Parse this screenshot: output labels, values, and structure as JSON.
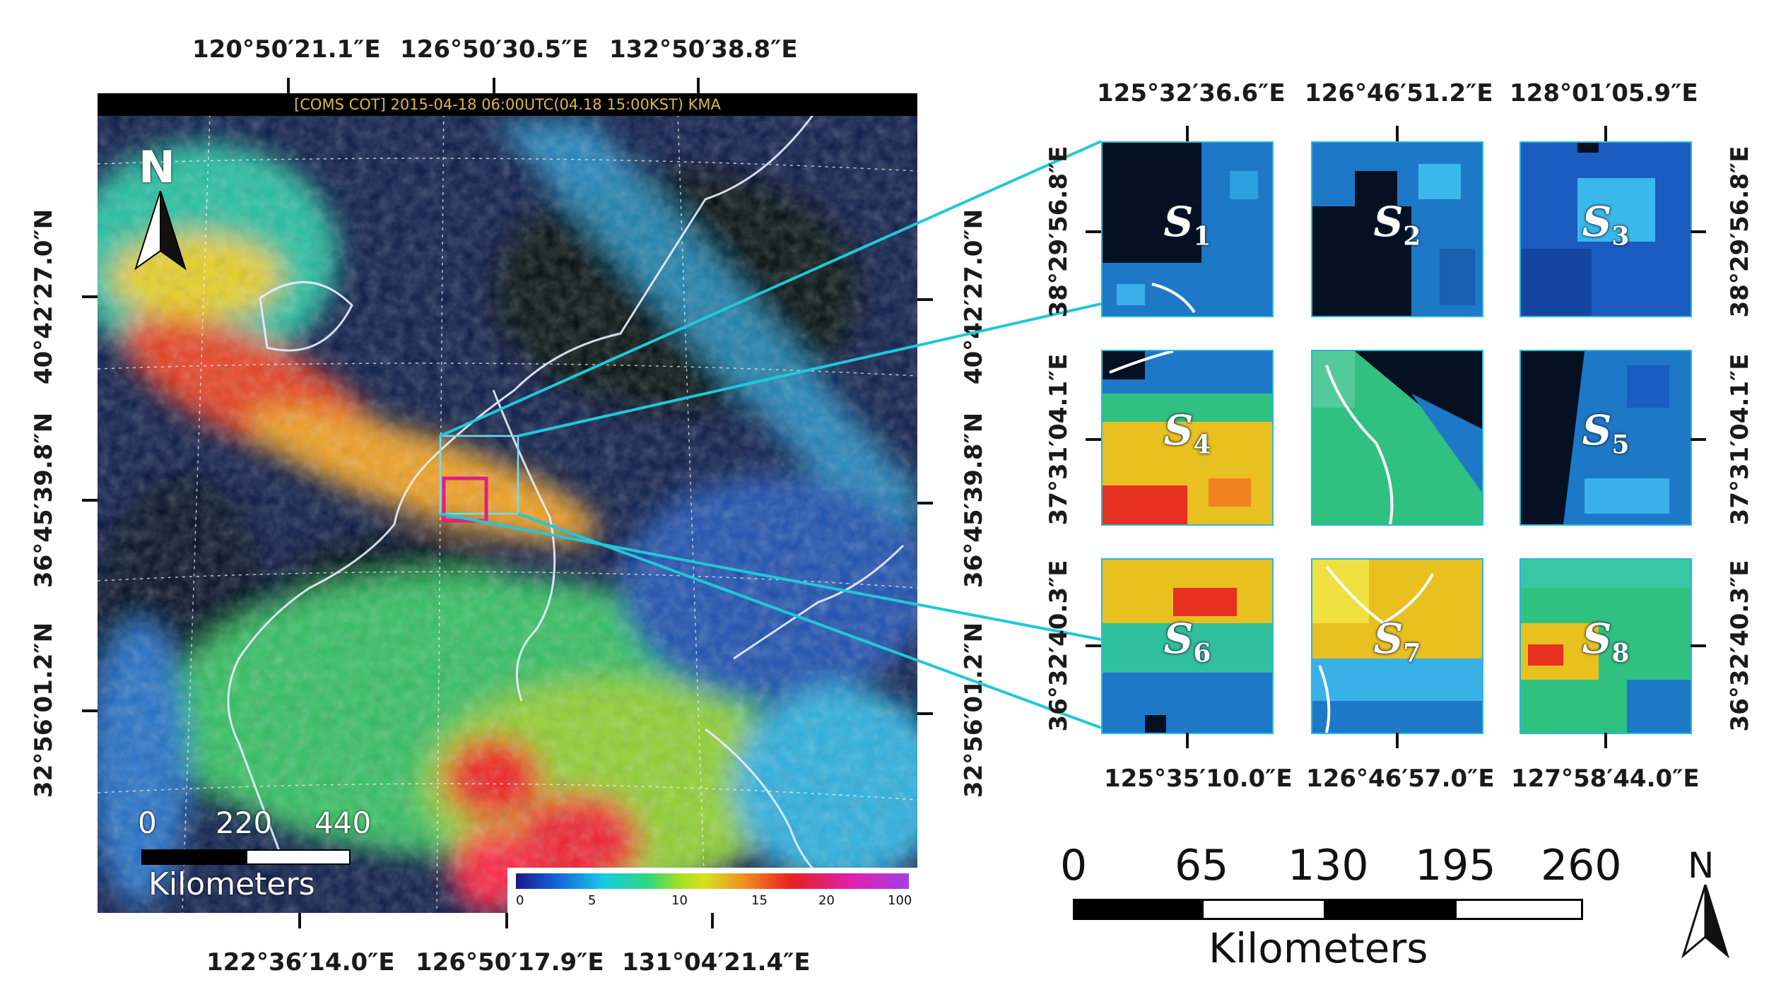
{
  "main_map": {
    "header": "[COMS  COT]  2015-04-18  06:00UTC(04.18  15:00KST)  KMA",
    "top_lon_labels": [
      "120°50′21.1″E",
      "126°50′30.5″E",
      "132°50′38.8″E"
    ],
    "bottom_lon_labels": [
      "122°36′14.0″E",
      "126°50′17.9″E",
      "131°04′21.4″E"
    ],
    "left_lat_labels": [
      "40°42′27.0″N",
      "36°45′39.8″N",
      "32°56′01.2″N"
    ],
    "right_lat_labels": [
      "40°42′27.0″N",
      "36°45′39.8″N",
      "32°56′01.2″N"
    ],
    "north_label": "N",
    "scalebar": {
      "labels": [
        "0",
        "220",
        "440"
      ],
      "unit": "Kilometers"
    },
    "colorbar": {
      "ticks": [
        "0",
        "5",
        "10",
        "15",
        "20",
        "100"
      ],
      "colors": [
        "#1a1a8a",
        "#1560d8",
        "#18c8e8",
        "#30d878",
        "#d8e020",
        "#f09020",
        "#e82020",
        "#e020b0",
        "#a040e8"
      ]
    }
  },
  "inset": {
    "top_lon_labels": [
      "125°32′36.6″E",
      "126°46′51.2″E",
      "128°01′05.9″E"
    ],
    "bottom_lon_labels": [
      "125°35′10.0″E",
      "126°46′57.0″E",
      "127°58′44.0″E"
    ],
    "left_lat_labels": [
      "38°29′56.8″E",
      "37°31′04.1″E",
      "36°32′40.3″E"
    ],
    "right_lat_labels": [
      "38°29′56.8″E",
      "37°31′04.1″E",
      "36°32′40.3″E"
    ],
    "panels": [
      {
        "letter": "S",
        "sub": "1",
        "theme": "dark"
      },
      {
        "letter": "S",
        "sub": "2",
        "theme": "dark"
      },
      {
        "letter": "S",
        "sub": "3",
        "theme": "blue"
      },
      {
        "letter": "S",
        "sub": "4",
        "theme": "warm"
      },
      {
        "letter": "",
        "sub": "",
        "theme": "mixed"
      },
      {
        "letter": "S",
        "sub": "5",
        "theme": "darkblue"
      },
      {
        "letter": "S",
        "sub": "6",
        "theme": "warm2"
      },
      {
        "letter": "S",
        "sub": "7",
        "theme": "warm3"
      },
      {
        "letter": "S",
        "sub": "8",
        "theme": "green"
      }
    ],
    "scalebar": {
      "labels": [
        "0",
        "65",
        "130",
        "195",
        "260"
      ],
      "unit": "Kilometers"
    },
    "north_label": "N"
  }
}
